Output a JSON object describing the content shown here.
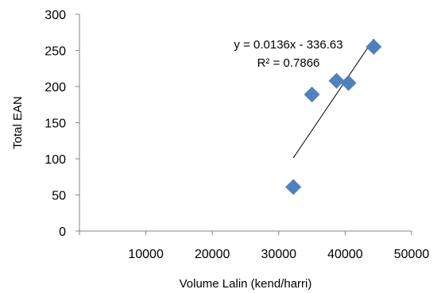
{
  "chart_data": {
    "type": "scatter",
    "xlabel": "Volume Lalin (kend/harri)",
    "ylabel": "Total EAN",
    "xlim": [
      0,
      50000
    ],
    "ylim": [
      0,
      300
    ],
    "x_ticks": [
      10000,
      20000,
      30000,
      40000,
      50000
    ],
    "y_ticks": [
      0,
      50,
      100,
      150,
      200,
      250,
      300
    ],
    "grid": false,
    "legend": "none",
    "marker_color": "#4F81BD",
    "marker_shape": "diamond",
    "points": [
      {
        "x": 32200,
        "y": 61
      },
      {
        "x": 35000,
        "y": 189
      },
      {
        "x": 38700,
        "y": 208
      },
      {
        "x": 40500,
        "y": 205
      },
      {
        "x": 44300,
        "y": 255
      }
    ],
    "trendline": {
      "type": "linear",
      "slope": 0.0136,
      "intercept": -336.63,
      "x_range": [
        32200,
        44300
      ],
      "color": "#000000",
      "equation_label": "y = 0.0136x - 336.63",
      "r2_label": "R² = 0.7866"
    }
  }
}
